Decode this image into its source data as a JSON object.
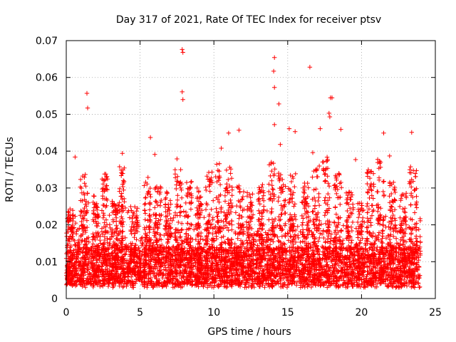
{
  "chart_data": {
    "type": "scatter",
    "title": "Day 317 of 2021, Rate Of TEC Index for receiver ptsv",
    "xlabel": "GPS time / hours",
    "ylabel": "ROTI / TECUs",
    "xlim": [
      0,
      25
    ],
    "ylim": [
      0,
      0.07
    ],
    "xticks": [
      0,
      5,
      10,
      15,
      20,
      25
    ],
    "yticks": [
      0,
      0.01,
      0.02,
      0.03,
      0.04,
      0.05,
      0.06,
      0.07
    ],
    "xtick_labels": [
      "0",
      "5",
      "10",
      "15",
      "20",
      "25"
    ],
    "ytick_labels": [
      "0",
      "0.01",
      "0.02",
      "0.03",
      "0.04",
      "0.05",
      "0.06",
      "0.07"
    ],
    "grid": true,
    "marker": "+",
    "color": "#ff0000",
    "x_data_range": [
      0,
      24
    ],
    "series": [
      {
        "name": "ROTI",
        "outliers": [
          {
            "x": 1.4,
            "y": 0.0557
          },
          {
            "x": 1.45,
            "y": 0.0517
          },
          {
            "x": 7.85,
            "y": 0.0676
          },
          {
            "x": 7.9,
            "y": 0.0668
          },
          {
            "x": 7.85,
            "y": 0.0561
          },
          {
            "x": 7.9,
            "y": 0.054
          },
          {
            "x": 14.1,
            "y": 0.0654
          },
          {
            "x": 14.05,
            "y": 0.0617
          },
          {
            "x": 14.1,
            "y": 0.0573
          },
          {
            "x": 14.4,
            "y": 0.0528
          },
          {
            "x": 16.5,
            "y": 0.0628
          },
          {
            "x": 17.9,
            "y": 0.0545
          },
          {
            "x": 18.0,
            "y": 0.0545
          },
          {
            "x": 17.8,
            "y": 0.0503
          },
          {
            "x": 17.85,
            "y": 0.0493
          },
          {
            "x": 5.7,
            "y": 0.0437
          },
          {
            "x": 11.0,
            "y": 0.0449
          },
          {
            "x": 11.7,
            "y": 0.0457
          },
          {
            "x": 14.1,
            "y": 0.0472
          },
          {
            "x": 15.1,
            "y": 0.0461
          },
          {
            "x": 15.5,
            "y": 0.0453
          },
          {
            "x": 17.2,
            "y": 0.0461
          },
          {
            "x": 18.6,
            "y": 0.0459
          },
          {
            "x": 21.5,
            "y": 0.0449
          },
          {
            "x": 23.4,
            "y": 0.0451
          },
          {
            "x": 0.6,
            "y": 0.0384
          },
          {
            "x": 3.8,
            "y": 0.0394
          },
          {
            "x": 10.5,
            "y": 0.0408
          },
          {
            "x": 14.5,
            "y": 0.0418
          },
          {
            "x": 16.7,
            "y": 0.0396
          },
          {
            "x": 19.6,
            "y": 0.0377
          },
          {
            "x": 21.9,
            "y": 0.0387
          },
          {
            "x": 6.0,
            "y": 0.0391
          },
          {
            "x": 7.5,
            "y": 0.0379
          }
        ],
        "clusters": [
          {
            "center": 0.3,
            "width": 0.4,
            "peak": 0.024
          },
          {
            "center": 1.2,
            "width": 0.5,
            "peak": 0.034
          },
          {
            "center": 2.0,
            "width": 0.4,
            "peak": 0.028
          },
          {
            "center": 2.6,
            "width": 0.4,
            "peak": 0.034
          },
          {
            "center": 3.3,
            "width": 0.4,
            "peak": 0.027
          },
          {
            "center": 3.8,
            "width": 0.4,
            "peak": 0.036
          },
          {
            "center": 4.6,
            "width": 0.5,
            "peak": 0.025
          },
          {
            "center": 5.5,
            "width": 0.5,
            "peak": 0.033
          },
          {
            "center": 6.2,
            "width": 0.5,
            "peak": 0.031
          },
          {
            "center": 6.9,
            "width": 0.4,
            "peak": 0.029
          },
          {
            "center": 7.6,
            "width": 0.5,
            "peak": 0.035
          },
          {
            "center": 8.3,
            "width": 0.4,
            "peak": 0.032
          },
          {
            "center": 9.0,
            "width": 0.4,
            "peak": 0.03
          },
          {
            "center": 9.7,
            "width": 0.5,
            "peak": 0.036
          },
          {
            "center": 10.3,
            "width": 0.4,
            "peak": 0.037
          },
          {
            "center": 11.0,
            "width": 0.5,
            "peak": 0.036
          },
          {
            "center": 11.8,
            "width": 0.5,
            "peak": 0.031
          },
          {
            "center": 12.5,
            "width": 0.5,
            "peak": 0.029
          },
          {
            "center": 13.2,
            "width": 0.4,
            "peak": 0.031
          },
          {
            "center": 13.9,
            "width": 0.5,
            "peak": 0.037
          },
          {
            "center": 14.6,
            "width": 0.5,
            "peak": 0.035
          },
          {
            "center": 15.3,
            "width": 0.5,
            "peak": 0.034
          },
          {
            "center": 16.2,
            "width": 0.5,
            "peak": 0.032
          },
          {
            "center": 16.9,
            "width": 0.5,
            "peak": 0.036
          },
          {
            "center": 17.6,
            "width": 0.5,
            "peak": 0.039
          },
          {
            "center": 18.4,
            "width": 0.5,
            "peak": 0.034
          },
          {
            "center": 19.2,
            "width": 0.5,
            "peak": 0.029
          },
          {
            "center": 19.9,
            "width": 0.4,
            "peak": 0.026
          },
          {
            "center": 20.6,
            "width": 0.5,
            "peak": 0.035
          },
          {
            "center": 21.3,
            "width": 0.5,
            "peak": 0.038
          },
          {
            "center": 22.1,
            "width": 0.5,
            "peak": 0.032
          },
          {
            "center": 22.8,
            "width": 0.5,
            "peak": 0.029
          },
          {
            "center": 23.5,
            "width": 0.5,
            "peak": 0.036
          }
        ],
        "baseline_range": [
          0.002,
          0.013
        ],
        "generated_point_count": 4200
      }
    ]
  }
}
